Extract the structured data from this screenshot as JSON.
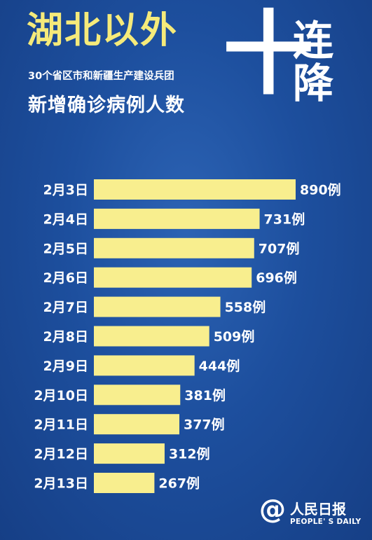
{
  "header": {
    "title": "湖北以外",
    "subtitle": "30个省区市和新疆生产建设兵团",
    "heading": "新增确诊病例人数",
    "big_char": "十",
    "side_chars": [
      "连",
      "降"
    ]
  },
  "chart_data": {
    "type": "bar",
    "orientation": "horizontal",
    "categories": [
      "2月3日",
      "2月4日",
      "2月5日",
      "2月6日",
      "2月7日",
      "2月8日",
      "2月9日",
      "2月10日",
      "2月11日",
      "2月12日",
      "2月13日"
    ],
    "values": [
      890,
      731,
      707,
      696,
      558,
      509,
      444,
      381,
      377,
      312,
      267
    ],
    "value_suffix": "例",
    "bar_color": "#f8ee8e",
    "label_color": "#ffffff"
  },
  "logo": {
    "symbol": "@",
    "name_cn": "人民日报",
    "name_en": "PEOPLE' S DAILY"
  },
  "colors": {
    "background": "#1d4f9e",
    "title": "#f5ea7a",
    "text": "#ffffff"
  }
}
